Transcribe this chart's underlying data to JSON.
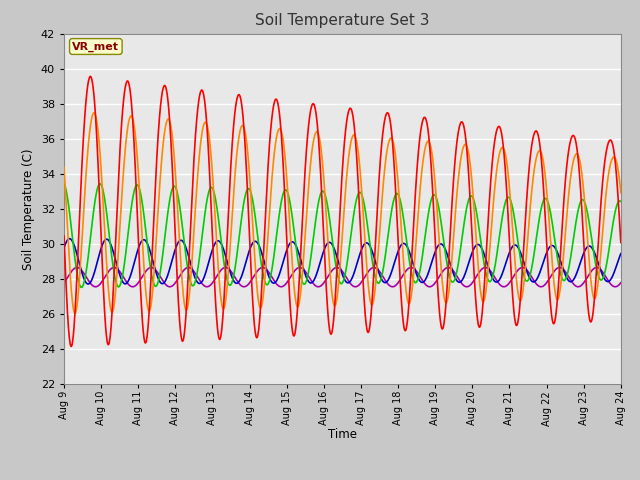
{
  "title": "Soil Temperature Set 3",
  "xlabel": "Time",
  "ylabel": "Soil Temperature (C)",
  "ylim": [
    22,
    42
  ],
  "xlim": [
    0,
    15
  ],
  "xtick_labels": [
    "Aug 9",
    "Aug 10",
    "Aug 11",
    "Aug 12",
    "Aug 13",
    "Aug 14",
    "Aug 15",
    "Aug 16",
    "Aug 17",
    "Aug 18",
    "Aug 19",
    "Aug 20",
    "Aug 21",
    "Aug 22",
    "Aug 23",
    "Aug 24"
  ],
  "xtick_positions": [
    0,
    1,
    2,
    3,
    4,
    5,
    6,
    7,
    8,
    9,
    10,
    11,
    12,
    13,
    14,
    15
  ],
  "ytick_positions": [
    22,
    24,
    26,
    28,
    30,
    32,
    34,
    36,
    38,
    40,
    42
  ],
  "series": {
    "Tsoil -2cm": {
      "color": "#ff0000",
      "lw": 1.2,
      "zorder": 5
    },
    "Tsoil -4cm": {
      "color": "#ff8800",
      "lw": 1.2,
      "zorder": 4
    },
    "Tsoil -8cm": {
      "color": "#00cc00",
      "lw": 1.2,
      "zorder": 3
    },
    "Tsoil -16cm": {
      "color": "#0000cc",
      "lw": 1.2,
      "zorder": 2
    },
    "Tsoil -32cm": {
      "color": "#aa00aa",
      "lw": 1.2,
      "zorder": 1
    }
  },
  "bg_color": "#e8e8e8",
  "grid_color": "#ffffff",
  "fig_bg": "#c8c8c8",
  "annotation_text": "VR_met",
  "annotation_bg": "#ffffcc",
  "annotation_fg": "#880000"
}
